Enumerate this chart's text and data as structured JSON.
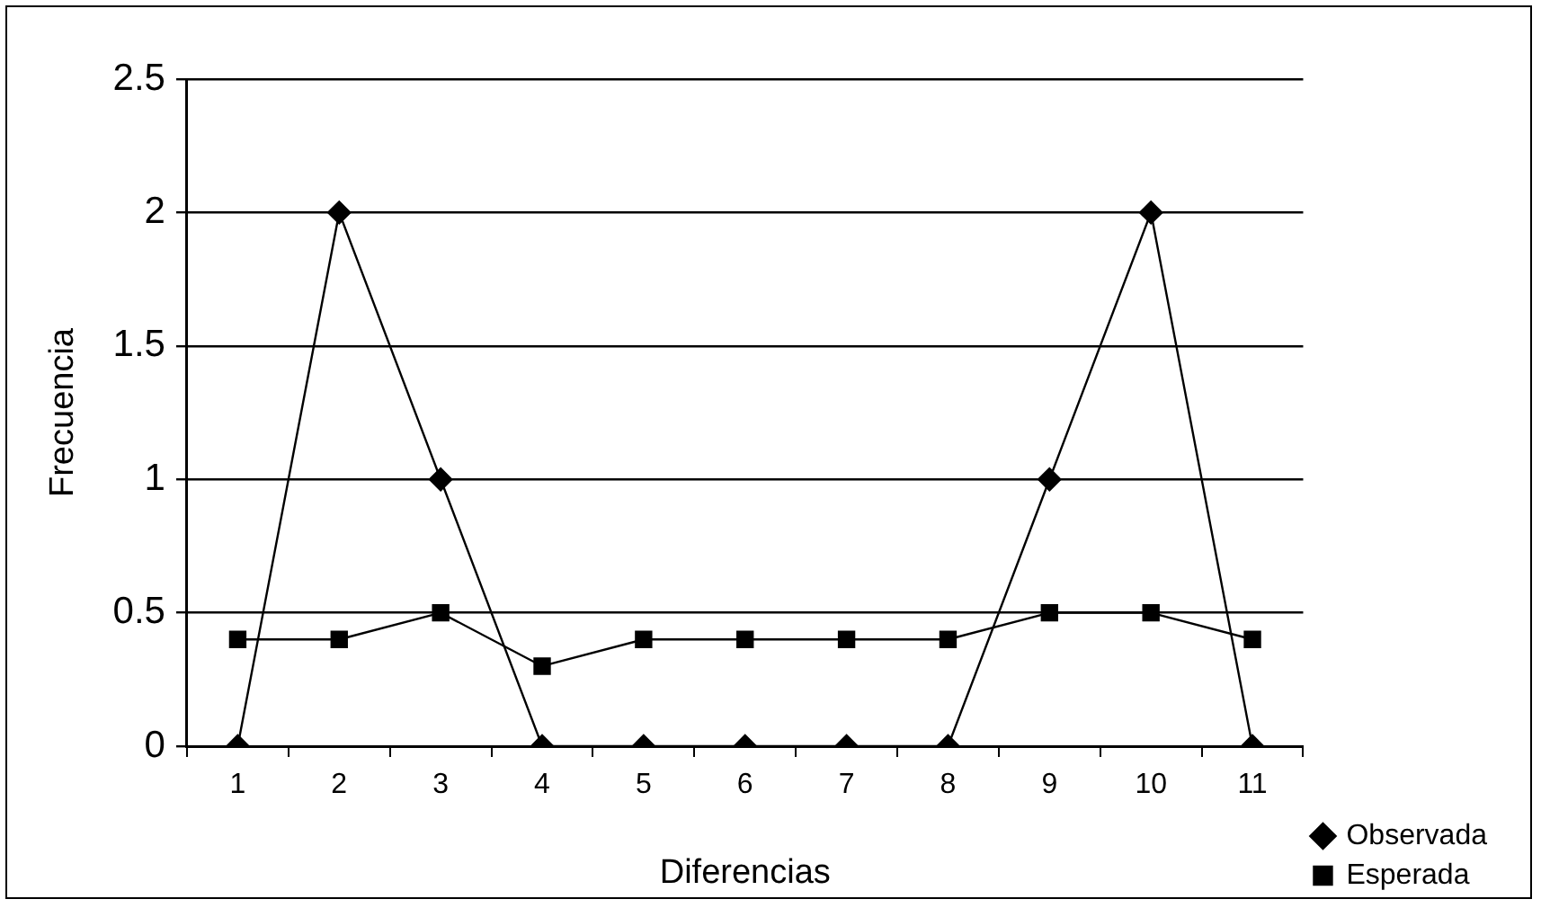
{
  "chart_data": {
    "type": "line",
    "xlabel": "Diferencias",
    "ylabel": "Frecuencia",
    "categories": [
      "1",
      "2",
      "3",
      "4",
      "5",
      "6",
      "7",
      "8",
      "9",
      "10",
      "11"
    ],
    "series": [
      {
        "name": "Observada",
        "color": "#000000",
        "marker": "diamond",
        "values": [
          0,
          2,
          1,
          0,
          0,
          0,
          0,
          0,
          1,
          2,
          0
        ]
      },
      {
        "name": "Esperada",
        "color": "#000000",
        "marker": "square",
        "values": [
          0.4,
          0.4,
          0.5,
          0.3,
          0.4,
          0.4,
          0.4,
          0.4,
          0.5,
          0.5,
          0.4
        ]
      }
    ],
    "ylim": [
      0,
      2.5
    ],
    "yticks": [
      0,
      0.5,
      1,
      1.5,
      2,
      2.5
    ],
    "grid": "y",
    "legend": "bottom right"
  }
}
